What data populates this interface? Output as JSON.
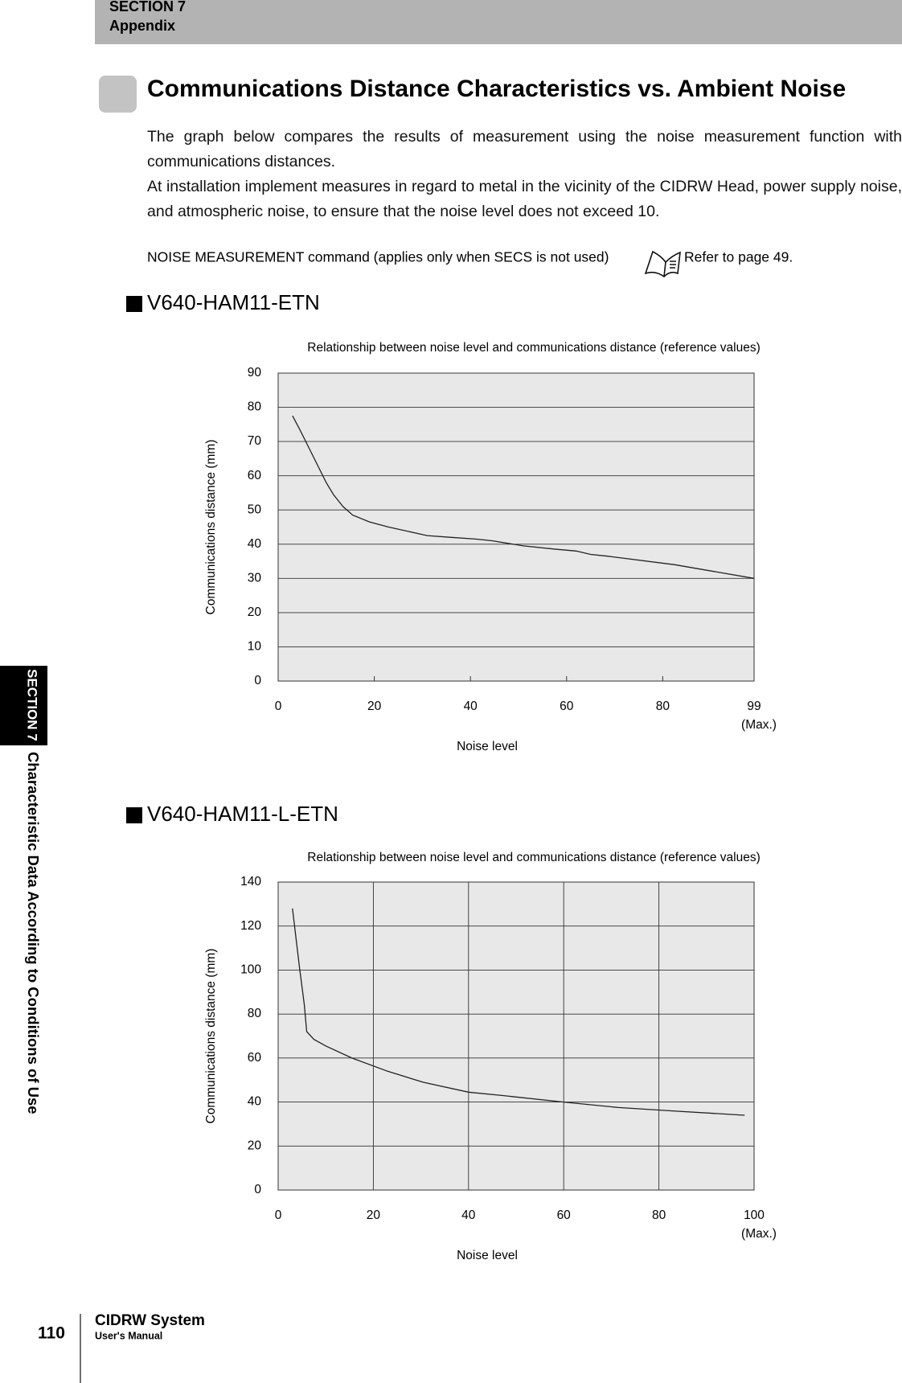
{
  "header": {
    "section": "SECTION 7",
    "subsection": "Appendix"
  },
  "title": "Communications Distance Characteristics vs. Ambient Noise",
  "paragraphs": [
    "The graph below compares the results of measurement using the noise measurement function with communications distances.",
    "At installation implement measures in regard to metal in the vicinity of the CIDRW Head, power supply noise, and atmospheric noise, to ensure that the noise level does not exceed 10."
  ],
  "note": {
    "text": "NOISE MEASUREMENT command (applies only when SECS is not used)",
    "ref": "Refer to page 49."
  },
  "sidebar": {
    "section": "SECTION 7",
    "chapter": "Characteristic Data According to Conditions of Use"
  },
  "footer": {
    "page": "110",
    "product": "CIDRW System",
    "manual": "User's Manual"
  },
  "chart_data": [
    {
      "type": "line",
      "heading": "V640-HAM11-ETN",
      "title": "Relationship between noise level and communications distance (reference values)",
      "xlabel": "Noise level",
      "ylabel": "Communications distance (mm)",
      "x_annotation": "(Max.)",
      "x": [
        3,
        4.5,
        10,
        11.5,
        13.5,
        15.5,
        19,
        23,
        31,
        36,
        41,
        44.5,
        51,
        58,
        62,
        65,
        68.5,
        82.5,
        99
      ],
      "series": [
        {
          "color": "#222222",
          "values": [
            77.5,
            73.5,
            58,
            54.5,
            51,
            48.5,
            46.5,
            45,
            42.5,
            42,
            41.5,
            41,
            39.5,
            38.5,
            38,
            37,
            36.5,
            34,
            30
          ]
        }
      ],
      "xlim": [
        0,
        99
      ],
      "ylim": [
        0,
        90
      ],
      "xticks": [
        0,
        20,
        40,
        60,
        80,
        99
      ],
      "yticks": [
        0,
        10,
        20,
        30,
        40,
        50,
        60,
        70,
        80,
        90
      ],
      "grid": "y"
    },
    {
      "type": "line",
      "heading": "V640-HAM11-L-ETN",
      "title": "Relationship between noise level and communications distance (reference values)",
      "xlabel": "Noise level",
      "ylabel": "Communications distance (mm)",
      "x_annotation": "(Max.)",
      "x": [
        3,
        4.5,
        5.5,
        6,
        7.5,
        10,
        15.5,
        23,
        30.5,
        40,
        47,
        60,
        71.5,
        82.5,
        98
      ],
      "series": [
        {
          "color": "#222222",
          "values": [
            128,
            101,
            84,
            72,
            68.5,
            65.5,
            60,
            54,
            49,
            44.5,
            43,
            40,
            37.5,
            36,
            34
          ]
        }
      ],
      "xlim": [
        0,
        100
      ],
      "ylim": [
        0,
        140
      ],
      "xticks": [
        0,
        20,
        40,
        60,
        80,
        100
      ],
      "yticks": [
        0,
        20,
        40,
        60,
        80,
        100,
        120,
        140
      ],
      "grid": "both"
    }
  ]
}
